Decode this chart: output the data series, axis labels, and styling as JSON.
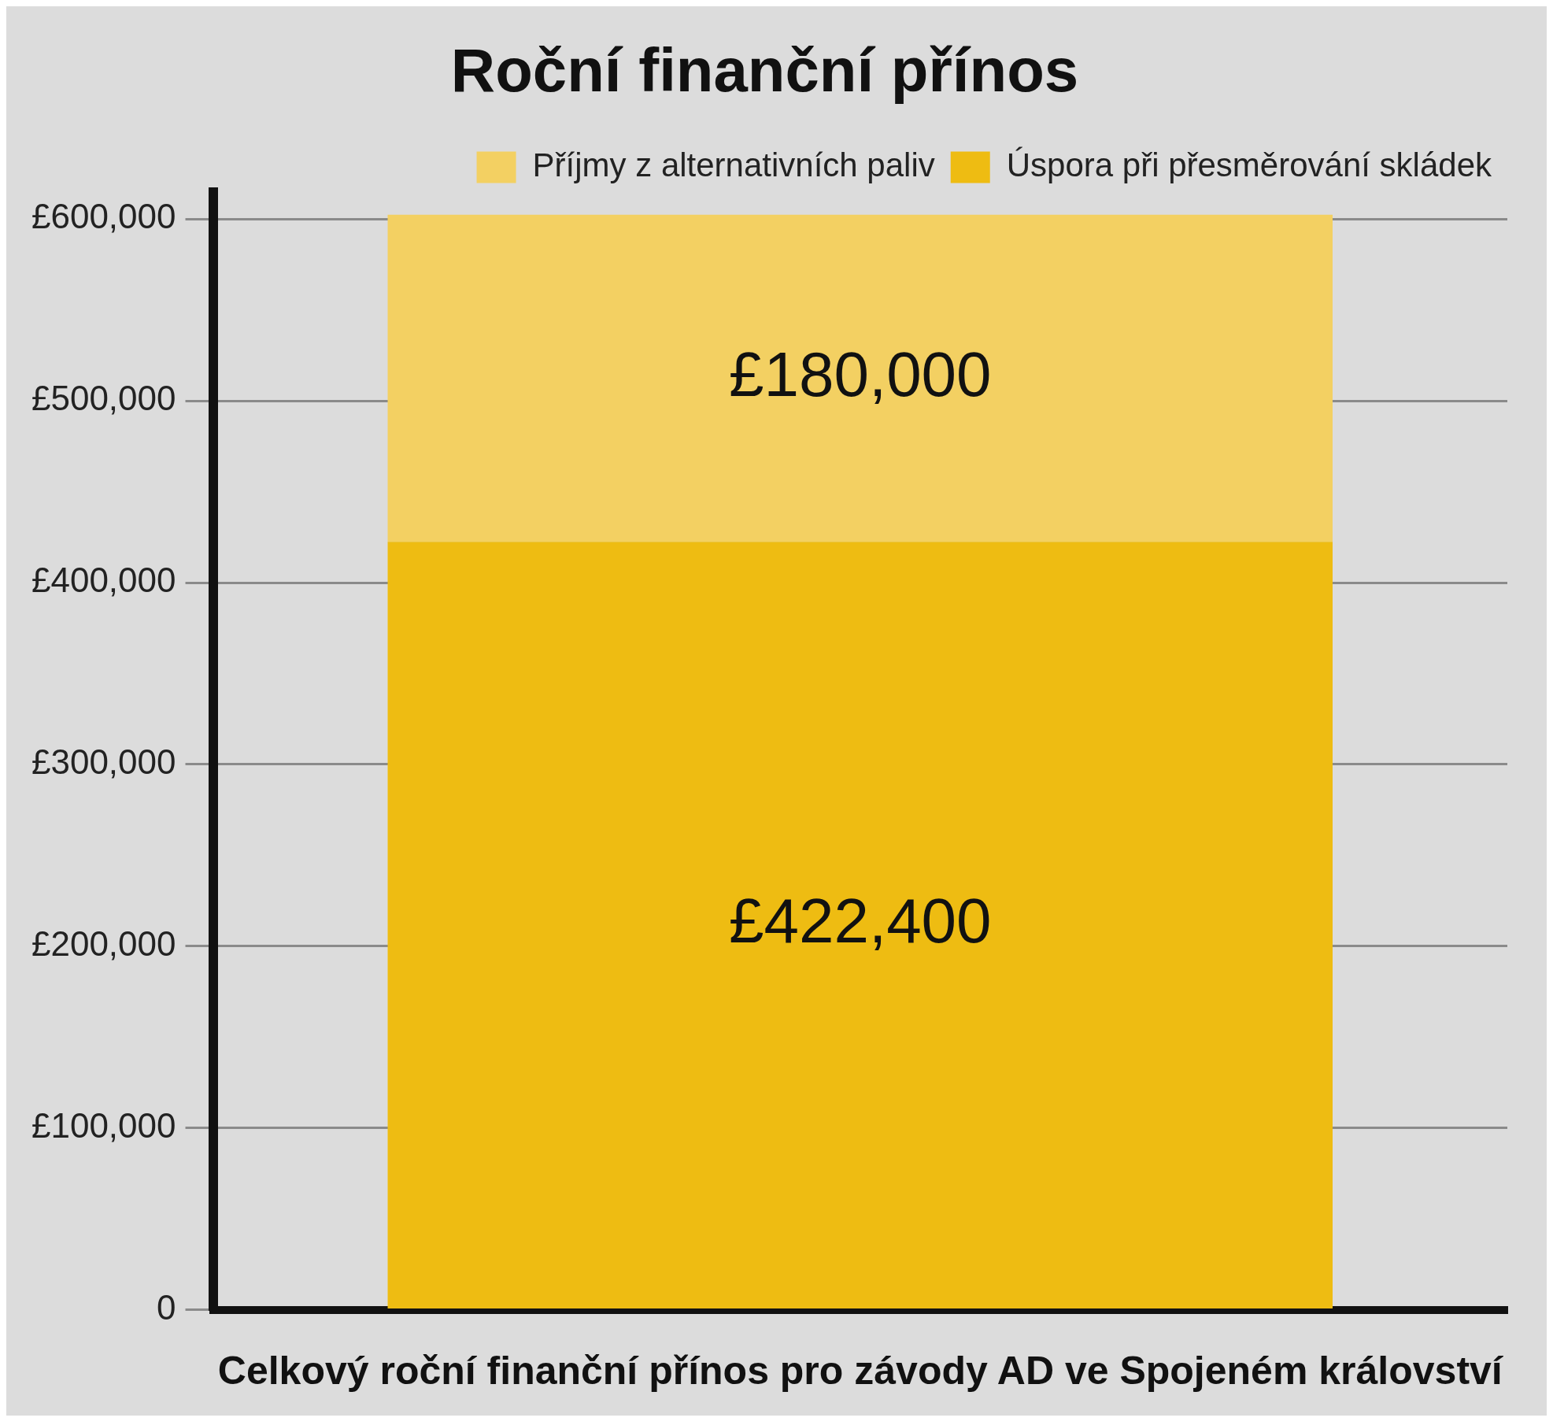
{
  "chart_data": {
    "type": "bar",
    "title": "Roční finanční přínos",
    "xlabel": "Celkový roční finanční přínos pro závody AD ve Spojeném království",
    "categories": [
      null
    ],
    "stacked": true,
    "series": [
      {
        "name": "Úspora při přesměrování skládek",
        "color": "#eebc12",
        "values": [
          422400
        ],
        "value_labels": [
          "£422,400"
        ]
      },
      {
        "name": "Příjmy z alternativních paliv",
        "color": "#f3d062",
        "values": [
          180000
        ],
        "value_labels": [
          "£180,000"
        ]
      }
    ],
    "ylim": [
      0,
      615000
    ],
    "yticks": [
      0,
      {
        "value": 100000,
        "label": "£100,000"
      },
      {
        "value": 200000,
        "label": "£200,000"
      },
      {
        "value": 300000,
        "label": "£300,000"
      },
      {
        "value": 400000,
        "label": "£400,000"
      },
      {
        "value": 500000,
        "label": "£500,000"
      },
      {
        "value": 600000,
        "label": "£600,000"
      }
    ],
    "grid": "y",
    "legend": "top right"
  }
}
